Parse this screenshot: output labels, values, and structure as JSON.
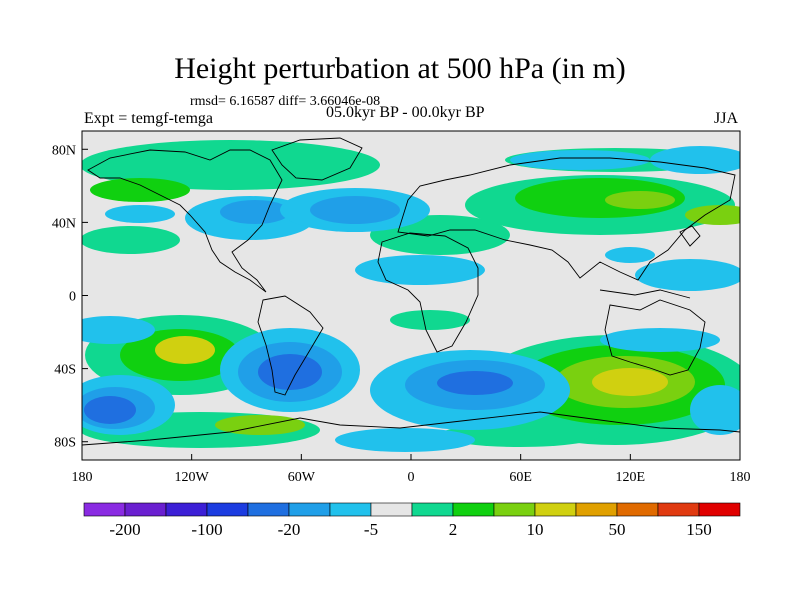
{
  "title": "Height perturbation at 500 hPa (in m)",
  "stats": "rmsd= 6.16587 diff= 3.66046e-08",
  "expt": "Expt = temgf-temga",
  "period": "05.0kyr BP - 00.0kyr BP",
  "season": "JJA",
  "lat_ticks": [
    {
      "label": "80N",
      "lat": 80
    },
    {
      "label": "40N",
      "lat": 40
    },
    {
      "label": "0",
      "lat": 0
    },
    {
      "label": "40S",
      "lat": -40
    },
    {
      "label": "80S",
      "lat": -80
    }
  ],
  "lon_ticks": [
    {
      "label": "180",
      "lon": -180
    },
    {
      "label": "120W",
      "lon": -120
    },
    {
      "label": "60W",
      "lon": -60
    },
    {
      "label": "0",
      "lon": 0
    },
    {
      "label": "60E",
      "lon": 60
    },
    {
      "label": "120E",
      "lon": 120
    },
    {
      "label": "180",
      "lon": 180
    }
  ],
  "colorbar": {
    "colors": [
      "#8a2be2",
      "#6a1fd0",
      "#3c1fd6",
      "#1c3ce0",
      "#1f6fe0",
      "#209fe8",
      "#21c1ec",
      "#e6e6e6",
      "#10d890",
      "#10d010",
      "#7ad010",
      "#d0d010",
      "#e0a000",
      "#e06a00",
      "#e03a10",
      "#e00000"
    ],
    "labels": [
      "-200",
      "-100",
      "-20",
      "-5",
      "2",
      "10",
      "50",
      "150"
    ]
  },
  "map_colors": {
    "neutral": "#e6e6e6",
    "coast": "#000000"
  }
}
